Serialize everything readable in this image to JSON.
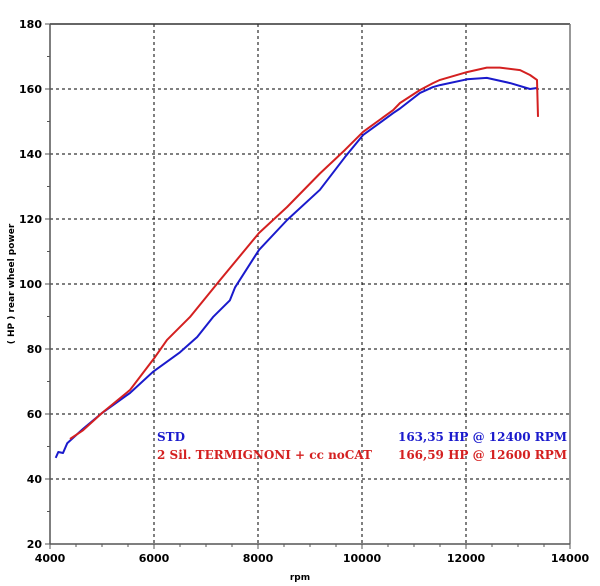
{
  "chart_data": {
    "type": "line",
    "title": "",
    "xlabel": "rpm",
    "ylabel": "( HP )  rear wheel power",
    "xlim": [
      4000,
      14000
    ],
    "ylim": [
      20,
      180
    ],
    "x_ticks": [
      4000,
      6000,
      8000,
      10000,
      12000,
      14000
    ],
    "y_ticks": [
      20,
      40,
      60,
      80,
      100,
      120,
      140,
      160,
      180
    ],
    "grid": true,
    "legend_placement": "bottom-right",
    "series": [
      {
        "name": "STD",
        "summary": "163,35 HP @ 12400 RPM",
        "color": "#1a1acc",
        "x": [
          4110,
          4160,
          4250,
          4330,
          4635,
          5000,
          5540,
          5980,
          6500,
          6830,
          7135,
          7460,
          7560,
          8020,
          8560,
          9190,
          9670,
          10020,
          10600,
          10730,
          11115,
          11365,
          11500,
          12020,
          12400,
          12850,
          13230,
          13365
        ],
        "y": [
          46.5,
          48.3,
          48,
          51,
          55.4,
          60.3,
          66.5,
          73,
          79,
          83.7,
          89.8,
          95,
          99,
          110.5,
          119.7,
          129,
          139,
          145.8,
          152.6,
          154,
          158.8,
          160.6,
          161.2,
          163,
          163.4,
          161.8,
          160,
          160.3
        ]
      },
      {
        "name": "2 Sil. TERMIGNONI + cc noCAT",
        "summary": "166,59 HP @ 12600 RPM",
        "color": "#d42020",
        "x": [
          4385,
          4635,
          5000,
          5540,
          6020,
          6250,
          6690,
          7270,
          8020,
          8560,
          9190,
          9670,
          10020,
          10600,
          10730,
          11115,
          11365,
          11500,
          12020,
          12400,
          12650,
          13040,
          13230,
          13365,
          13385
        ],
        "y": [
          52.3,
          55,
          60.3,
          67.4,
          77.5,
          82.8,
          89.8,
          101.2,
          115.7,
          123.7,
          134,
          141.2,
          146.8,
          153.5,
          155.7,
          159.7,
          161.8,
          162.8,
          165.2,
          166.6,
          166.6,
          165.8,
          164.3,
          162.8,
          151.4
        ]
      }
    ]
  }
}
